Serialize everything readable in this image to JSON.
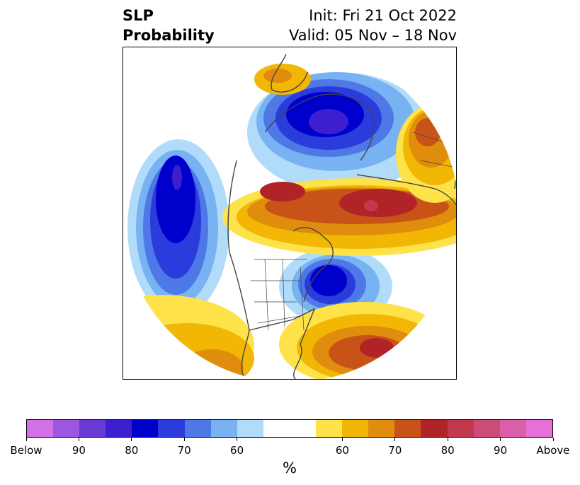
{
  "title": {
    "left_line1": "SLP",
    "left_line2": "Probability",
    "init": "Init: Fri 21 Oct 2022",
    "valid": "Valid: 05 Nov – 18 Nov"
  },
  "colorbar": {
    "colors": [
      "#d370e8",
      "#9b57e0",
      "#6a3ad6",
      "#3d1fd0",
      "#0000cc",
      "#2a3cdc",
      "#4d78e6",
      "#78b2f2",
      "#b0dcfa",
      "#ffffff",
      "#ffffff",
      "#fde24a",
      "#f2b705",
      "#e08c0c",
      "#c75318",
      "#b02428",
      "#c2384e",
      "#cc4c78",
      "#da5fa8",
      "#e470d8"
    ],
    "tick_labels": [
      "Below",
      "90",
      "80",
      "70",
      "60",
      "60",
      "70",
      "80",
      "90",
      "Above"
    ],
    "units": "%"
  },
  "palette": {
    "below": [
      "#b0dcfa",
      "#78b2f2",
      "#4d78e6",
      "#2a3cdc",
      "#0000cc",
      "#3d1fd0"
    ],
    "above": [
      "#fde24a",
      "#f2b705",
      "#e08c0c",
      "#c75318",
      "#b02428",
      "#c2384e"
    ],
    "coast": "#444444"
  }
}
